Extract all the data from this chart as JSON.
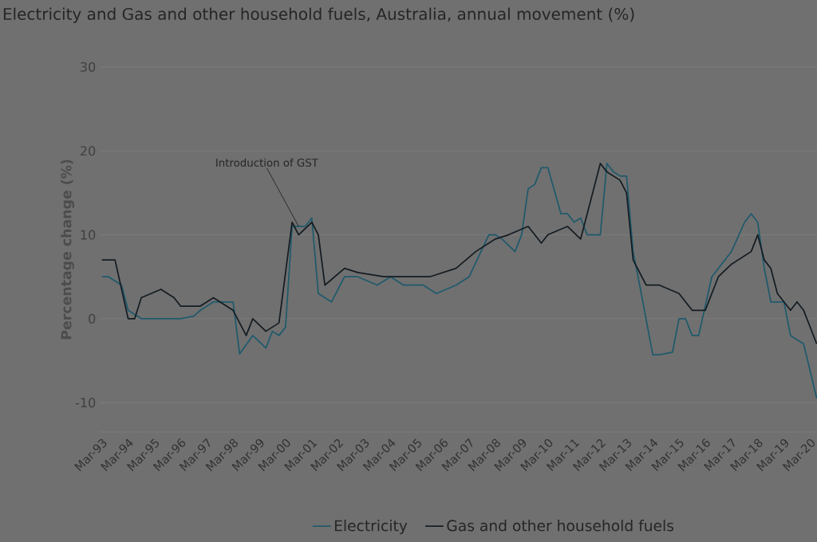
{
  "chart_data": {
    "type": "line",
    "title": "Electricity and Gas and other household fuels, Australia, annual movement (%)",
    "ylabel": "Percentage change (%)",
    "xlim": [
      "1993-02",
      "2020-06"
    ],
    "ylim": [
      -13.5,
      30
    ],
    "yticks": [
      -10,
      0,
      10,
      20,
      30
    ],
    "xticks": [
      {
        "value": "1993-03",
        "label": "Mar-93"
      },
      {
        "value": "1994-03",
        "label": "Mar-94"
      },
      {
        "value": "1995-03",
        "label": "Mar-95"
      },
      {
        "value": "1996-03",
        "label": "Mar-96"
      },
      {
        "value": "1997-03",
        "label": "Mar-97"
      },
      {
        "value": "1998-03",
        "label": "Mar-98"
      },
      {
        "value": "1999-03",
        "label": "Mar-99"
      },
      {
        "value": "2000-03",
        "label": "Mar-00"
      },
      {
        "value": "2001-03",
        "label": "Mar-01"
      },
      {
        "value": "2002-03",
        "label": "Mar-02"
      },
      {
        "value": "2003-03",
        "label": "Mar-03"
      },
      {
        "value": "2004-03",
        "label": "Mar-04"
      },
      {
        "value": "2005-03",
        "label": "Mar-05"
      },
      {
        "value": "2006-03",
        "label": "Mar-06"
      },
      {
        "value": "2007-03",
        "label": "Mar-07"
      },
      {
        "value": "2008-03",
        "label": "Mar-08"
      },
      {
        "value": "2009-03",
        "label": "Mar-09"
      },
      {
        "value": "2010-03",
        "label": "Mar-10"
      },
      {
        "value": "2011-03",
        "label": "Mar-11"
      },
      {
        "value": "2012-03",
        "label": "Mar-12"
      },
      {
        "value": "2013-03",
        "label": "Mar-13"
      },
      {
        "value": "2014-03",
        "label": "Mar-14"
      },
      {
        "value": "2015-03",
        "label": "Mar-15"
      },
      {
        "value": "2016-03",
        "label": "Mar-16"
      },
      {
        "value": "2017-03",
        "label": "Mar-17"
      },
      {
        "value": "2018-03",
        "label": "Mar-18"
      },
      {
        "value": "2019-03",
        "label": "Mar-19"
      },
      {
        "value": "2020-03",
        "label": "Mar-20"
      }
    ],
    "grid": "y",
    "legend": "bottom",
    "marker": "none",
    "line_style": "solid",
    "annotations": [
      {
        "text": "Introduction of GST",
        "x": "2000-09",
        "y": 11
      }
    ],
    "series": [
      {
        "name": "Electricity",
        "color": "#1f5a6c",
        "x": [
          "1993-03",
          "1993-06",
          "1993-12",
          "1994-03",
          "1994-06",
          "1994-09",
          "1995-06",
          "1996-03",
          "1996-09",
          "1996-12",
          "1997-06",
          "1998-03",
          "1998-06",
          "1998-12",
          "1999-06",
          "1999-09",
          "1999-12",
          "2000-03",
          "2000-06",
          "2000-12",
          "2001-03",
          "2001-06",
          "2001-12",
          "2002-06",
          "2002-12",
          "2003-09",
          "2004-03",
          "2004-09",
          "2005-06",
          "2005-12",
          "2006-09",
          "2007-03",
          "2007-12",
          "2008-03",
          "2008-06",
          "2008-12",
          "2009-03",
          "2009-06",
          "2009-09",
          "2009-12",
          "2010-03",
          "2010-09",
          "2010-12",
          "2011-03",
          "2011-06",
          "2011-09",
          "2012-03",
          "2012-06",
          "2012-09",
          "2012-12",
          "2013-03",
          "2013-06",
          "2013-09",
          "2014-03",
          "2014-06",
          "2014-12",
          "2015-03",
          "2015-06",
          "2015-09",
          "2015-12",
          "2016-06",
          "2016-09",
          "2016-12",
          "2017-03",
          "2017-09",
          "2017-12",
          "2018-03",
          "2018-06",
          "2018-09",
          "2019-03",
          "2019-06",
          "2019-09",
          "2019-12",
          "2020-06"
        ],
        "values": [
          5,
          5,
          4,
          1,
          0.5,
          0,
          0,
          0,
          0.3,
          1,
          2,
          2,
          -4.2,
          -2,
          -3.5,
          -1.5,
          -2,
          -1,
          11,
          11,
          12,
          3,
          2,
          5,
          5,
          4,
          5,
          4,
          4,
          3,
          4,
          5,
          10,
          10,
          9.5,
          8,
          10,
          15.5,
          16,
          18,
          18,
          12.5,
          12.5,
          11.5,
          12,
          10,
          10,
          18.5,
          17.5,
          17,
          17,
          8,
          4,
          -4.3,
          -4.3,
          -4,
          0,
          0,
          -2,
          -2,
          5,
          6,
          7,
          8,
          11.5,
          12.5,
          11.5,
          6,
          2,
          2,
          -2,
          -2.5,
          -3,
          -9.5
        ]
      },
      {
        "name": "Gas and other household fuels",
        "color": "#141c22",
        "x": [
          "1993-03",
          "1993-09",
          "1993-12",
          "1994-03",
          "1994-06",
          "1994-09",
          "1995-06",
          "1995-12",
          "1996-03",
          "1996-12",
          "1997-06",
          "1998-03",
          "1998-09",
          "1998-12",
          "1999-06",
          "1999-12",
          "2000-06",
          "2000-09",
          "2001-03",
          "2001-06",
          "2001-09",
          "2002-06",
          "2002-12",
          "2003-12",
          "2004-09",
          "2005-09",
          "2006-09",
          "2007-06",
          "2008-03",
          "2008-09",
          "2009-06",
          "2009-12",
          "2010-03",
          "2010-12",
          "2011-06",
          "2012-03",
          "2012-06",
          "2012-12",
          "2013-03",
          "2013-06",
          "2013-12",
          "2014-06",
          "2015-03",
          "2015-09",
          "2016-03",
          "2016-09",
          "2017-03",
          "2017-12",
          "2018-03",
          "2018-06",
          "2018-09",
          "2018-12",
          "2019-06",
          "2019-09",
          "2019-12",
          "2020-06"
        ],
        "values": [
          7,
          7,
          3.5,
          0,
          0,
          2.5,
          3.5,
          2.5,
          1.5,
          1.5,
          2.5,
          1,
          -2,
          0,
          -1.5,
          -0.5,
          11.5,
          10,
          11.5,
          10,
          4,
          6,
          5.5,
          5,
          5,
          5,
          6,
          8,
          9.5,
          10,
          11,
          9,
          10,
          11,
          9.5,
          18.5,
          17.5,
          16.5,
          15,
          7,
          4,
          4,
          3,
          1,
          1,
          5,
          6.5,
          8,
          10,
          7,
          6,
          3,
          1,
          2,
          1,
          -3
        ]
      }
    ]
  }
}
